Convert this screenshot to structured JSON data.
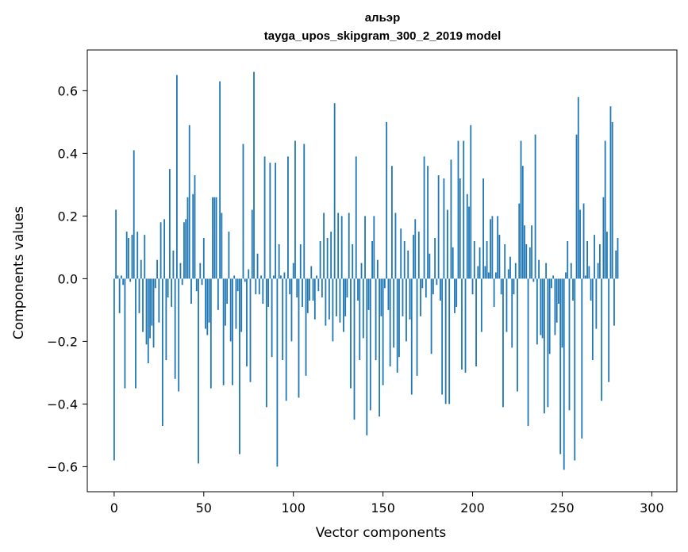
{
  "chart_data": {
    "type": "bar",
    "title": "альэр",
    "subtitle": "tayga_upos_skipgram_300_2_2019 model",
    "xlabel": "Vector components",
    "ylabel": "Components values",
    "xlim": [
      -15,
      314
    ],
    "ylim": [
      -0.68,
      0.73
    ],
    "x_ticks": [
      0,
      50,
      100,
      150,
      200,
      250,
      300
    ],
    "y_ticks": [
      -0.6,
      -0.4,
      -0.2,
      0.0,
      0.2,
      0.4,
      0.6
    ],
    "y_tick_labels": [
      "−0.6",
      "−0.4",
      "−0.2",
      "0.0",
      "0.2",
      "0.4",
      "0.6"
    ],
    "grid": false,
    "bar_color": "#1f77b4",
    "values": [
      -0.58,
      0.22,
      0.01,
      -0.11,
      0.01,
      -0.02,
      -0.35,
      0.15,
      0.13,
      -0.01,
      0.14,
      0.41,
      -0.35,
      0.15,
      -0.11,
      0.06,
      -0.17,
      0.14,
      -0.21,
      -0.27,
      -0.19,
      -0.15,
      -0.22,
      -0.03,
      0.06,
      -0.14,
      0.18,
      -0.47,
      0.19,
      -0.26,
      -0.06,
      0.35,
      -0.09,
      0.09,
      -0.32,
      0.65,
      -0.36,
      0.05,
      -0.02,
      0.18,
      0.19,
      0.26,
      0.49,
      -0.08,
      0.27,
      0.33,
      -0.04,
      -0.59,
      0.05,
      -0.02,
      0.13,
      -0.16,
      -0.18,
      -0.14,
      -0.35,
      0.26,
      0.26,
      0.26,
      -0.1,
      0.63,
      0.21,
      -0.34,
      -0.15,
      -0.08,
      0.15,
      -0.2,
      -0.34,
      0.01,
      -0.16,
      -0.04,
      -0.56,
      -0.17,
      0.43,
      -0.01,
      -0.28,
      0.03,
      -0.33,
      0.22,
      0.66,
      -0.05,
      0.08,
      -0.05,
      0.01,
      -0.08,
      0.39,
      -0.41,
      -0.09,
      0.37,
      -0.25,
      0.01,
      0.37,
      -0.6,
      0.11,
      0.01,
      -0.26,
      0.02,
      -0.39,
      0.39,
      -0.05,
      -0.2,
      0.05,
      0.44,
      -0.06,
      -0.38,
      0.11,
      -0.09,
      0.43,
      -0.31,
      -0.11,
      -0.07,
      0.04,
      -0.07,
      -0.13,
      0.01,
      -0.04,
      0.12,
      -0.06,
      0.21,
      -0.15,
      0.13,
      -0.13,
      0.15,
      -0.2,
      0.56,
      -0.12,
      0.21,
      -0.14,
      0.2,
      -0.17,
      -0.12,
      -0.06,
      0.21,
      -0.35,
      0.11,
      -0.45,
      0.39,
      -0.07,
      -0.26,
      0.05,
      -0.19,
      0.2,
      -0.5,
      -0.1,
      -0.42,
      0.12,
      0.2,
      -0.26,
      0.06,
      -0.44,
      -0.12,
      -0.34,
      -0.03,
      0.5,
      -0.1,
      -0.28,
      0.36,
      -0.22,
      0.21,
      -0.3,
      -0.25,
      0.16,
      -0.12,
      0.12,
      -0.2,
      0.09,
      -0.13,
      -0.37,
      0.14,
      0.19,
      -0.31,
      0.15,
      -0.12,
      -0.03,
      0.39,
      -0.06,
      0.36,
      0.08,
      -0.24,
      -0.05,
      0.13,
      -0.02,
      0.33,
      -0.07,
      -0.37,
      0.32,
      -0.4,
      0.22,
      -0.4,
      0.38,
      0.1,
      -0.11,
      -0.09,
      0.44,
      0.32,
      -0.29,
      0.44,
      -0.3,
      0.27,
      0.23,
      0.49,
      -0.05,
      0.12,
      -0.28,
      0.04,
      0.1,
      -0.17,
      0.32,
      0.04,
      0.12,
      0.02,
      0.19,
      0.2,
      -0.09,
      0.02,
      0.2,
      0.14,
      -0.05,
      -0.41,
      0.11,
      -0.17,
      0.03,
      0.07,
      -0.22,
      -0.05,
      0.05,
      -0.36,
      0.24,
      0.44,
      0.36,
      0.17,
      0.11,
      -0.47,
      0.1,
      0.17,
      -0.01,
      0.46,
      -0.21,
      0.06,
      -0.18,
      -0.19,
      -0.43,
      0.05,
      -0.41,
      -0.24,
      -0.03,
      0.01,
      -0.18,
      -0.14,
      -0.08,
      -0.56,
      -0.22,
      -0.61,
      0.02,
      0.12,
      -0.42,
      0.05,
      -0.07,
      -0.58,
      0.46,
      0.58,
      0.22,
      -0.51,
      0.24,
      0.01,
      0.12,
      0.04,
      -0.07,
      -0.26,
      0.14,
      -0.16,
      0.05,
      0.11,
      -0.39,
      0.26,
      0.44,
      0.15,
      -0.33,
      0.55,
      0.5,
      -0.15,
      0.09,
      0.13
    ]
  }
}
